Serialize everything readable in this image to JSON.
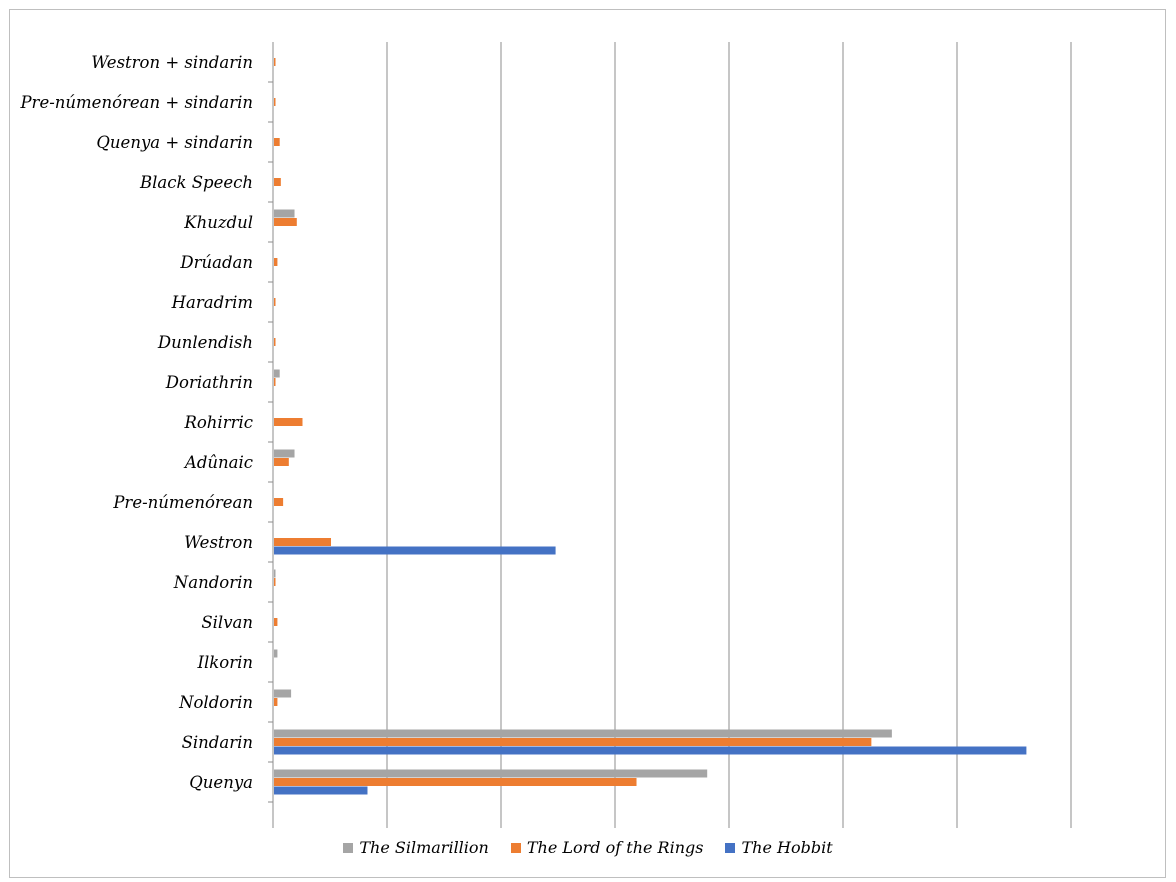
{
  "chart_data": {
    "type": "bar",
    "orientation": "horizontal",
    "categories": [
      "Quenya",
      "Sindarin",
      "Noldorin",
      "Ilkorin",
      "Silvan",
      "Nandorin",
      "Westron",
      "Pre-númenórean",
      "Adûnaic",
      "Rohirric",
      "Doriathrin",
      "Dunlendish",
      "Haradrim",
      "Drúadan",
      "Khuzdul",
      "Black Speech",
      "Quenya + sindarin",
      "Pre-númenórean + sindarin",
      "Westron + sindarin"
    ],
    "series": [
      {
        "name": "The Silmarillion",
        "color": "#a5a5a5",
        "values": [
          380,
          542,
          15,
          3,
          0,
          1,
          0,
          0,
          18,
          0,
          5,
          0,
          0,
          0,
          18,
          0,
          0,
          0,
          0
        ]
      },
      {
        "name": "The Lord of the Rings",
        "color": "#ed7d31",
        "values": [
          318,
          524,
          3,
          0,
          3,
          1,
          50,
          8,
          13,
          25,
          1,
          1,
          1,
          3,
          20,
          6,
          5,
          1,
          1
        ]
      },
      {
        "name": "The Hobbit",
        "color": "#4472c4",
        "values": [
          82,
          660,
          0,
          0,
          0,
          0,
          247,
          0,
          0,
          0,
          0,
          0,
          0,
          0,
          0,
          0,
          0,
          0,
          0
        ]
      }
    ],
    "xlim": [
      0,
      700
    ],
    "xtick_step": 100,
    "grid": true,
    "xtick_labels_shown": false,
    "legend_position": "bottom",
    "title": "",
    "xlabel": "",
    "ylabel": ""
  },
  "legend": [
    {
      "label": "The Silmarillion",
      "color": "#a5a5a5"
    },
    {
      "label": "The Lord of the Rings",
      "color": "#ed7d31"
    },
    {
      "label": "The Hobbit",
      "color": "#4472c4"
    }
  ]
}
